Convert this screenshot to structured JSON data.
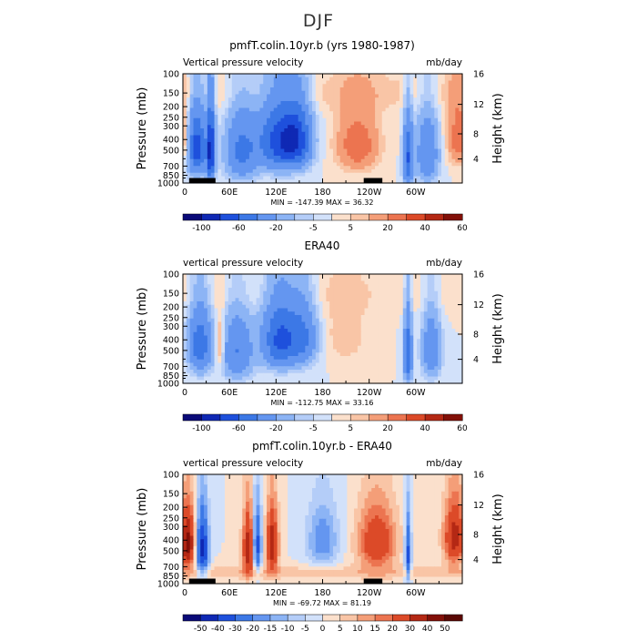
{
  "title": "DJF",
  "chart_data": [
    {
      "type": "heatmap",
      "title": "pmfT.colin.10yr.b (yrs 1980-1987)",
      "left_label": "Vertical pressure velocity",
      "right_label": "mb/day",
      "ylabel": "Pressure (mb)",
      "ylabel_right": "Height (km)",
      "y_ticks": [
        "100",
        "150",
        "200",
        "250",
        "300",
        "400",
        "500",
        "700",
        "850",
        "1000"
      ],
      "height_ticks": [
        "16",
        "12",
        "8",
        "4"
      ],
      "x_ticks": [
        "0",
        "60E",
        "120E",
        "180",
        "120W",
        "60W"
      ],
      "min_max": "MIN = -147.39   MAX =  36.32",
      "colorbar_labels": [
        "-100",
        "-60",
        "-20",
        "-5",
        "5",
        "20",
        "40",
        "60"
      ],
      "colormap": [
        "#0a0a78",
        "#0f28b4",
        "#1e50dc",
        "#3c78e6",
        "#6496f0",
        "#8cb4f5",
        "#b4cdf8",
        "#d2e1fa",
        "#fbe0cc",
        "#f9c5a6",
        "#f49e78",
        "#ec7450",
        "#dc4a28",
        "#b42814",
        "#821008"
      ],
      "field": "pmfT"
    },
    {
      "type": "heatmap",
      "title": "ERA40",
      "left_label": "vertical pressure velocity",
      "right_label": "mb/day",
      "ylabel": "Pressure (mb)",
      "ylabel_right": "Height (km)",
      "y_ticks": [
        "100",
        "150",
        "200",
        "250",
        "300",
        "400",
        "500",
        "700",
        "850",
        "1000"
      ],
      "height_ticks": [
        "16",
        "12",
        "8",
        "4"
      ],
      "x_ticks": [
        "0",
        "60E",
        "120E",
        "180",
        "120W",
        "60W"
      ],
      "min_max": "MIN = -112.75   MAX =  33.16",
      "colorbar_labels": [
        "-100",
        "-60",
        "-20",
        "-5",
        "5",
        "20",
        "40",
        "60"
      ],
      "colormap": [
        "#0a0a78",
        "#0f28b4",
        "#1e50dc",
        "#3c78e6",
        "#6496f0",
        "#8cb4f5",
        "#b4cdf8",
        "#d2e1fa",
        "#fbe0cc",
        "#f9c5a6",
        "#f49e78",
        "#ec7450",
        "#dc4a28",
        "#b42814",
        "#821008"
      ],
      "field": "era"
    },
    {
      "type": "heatmap",
      "title": "pmfT.colin.10yr.b - ERA40",
      "left_label": "vertical pressure velocity",
      "right_label": "mb/day",
      "ylabel": "Pressure (mb)",
      "ylabel_right": "Height (km)",
      "y_ticks": [
        "100",
        "150",
        "200",
        "250",
        "300",
        "400",
        "500",
        "700",
        "850",
        "1000"
      ],
      "height_ticks": [
        "16",
        "12",
        "8",
        "4"
      ],
      "x_ticks": [
        "0",
        "60E",
        "120E",
        "180",
        "120W",
        "60W"
      ],
      "min_max": "MIN = -69.72   MAX =  81.19",
      "colorbar_labels": [
        "-50",
        "-40",
        "-30",
        "-20",
        "-15",
        "-10",
        "-5",
        "0",
        "5",
        "10",
        "15",
        "20",
        "30",
        "40",
        "50"
      ],
      "colormap": [
        "#0a0a78",
        "#0f28b4",
        "#1e50dc",
        "#3c78e6",
        "#6496f0",
        "#8cb4f5",
        "#b4cdf8",
        "#d2e1fa",
        "#fbe0cc",
        "#f9c5a6",
        "#f49e78",
        "#ec7450",
        "#dc4a28",
        "#b42814",
        "#821008",
        "#5a0804"
      ],
      "field": "diff"
    }
  ]
}
